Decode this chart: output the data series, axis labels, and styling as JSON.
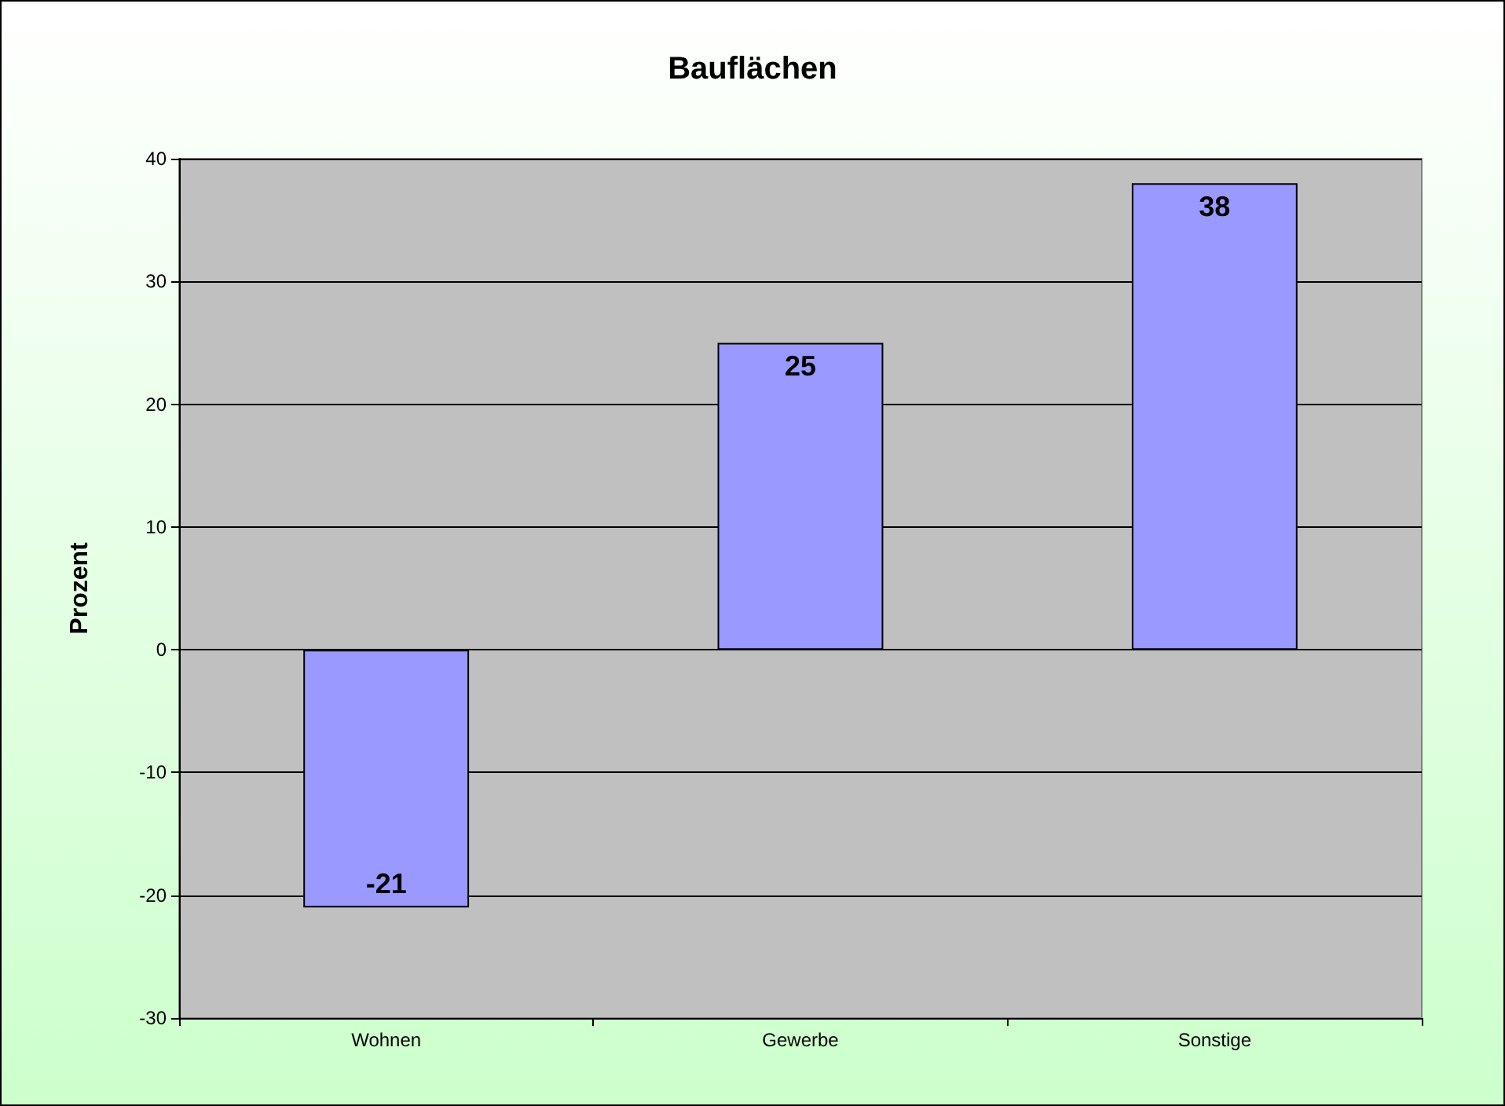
{
  "chart_data": {
    "type": "bar",
    "title": "Bauflächen",
    "ylabel": "Prozent",
    "categories": [
      "Wohnen",
      "Gewerbe",
      "Sonstige"
    ],
    "values": [
      -21,
      25,
      38
    ],
    "color": "#9999ff",
    "ylim": [
      -30,
      40
    ],
    "yticks": [
      -30,
      -20,
      -10,
      0,
      10,
      20,
      30,
      40
    ],
    "grid": "y",
    "data_labels": true
  }
}
